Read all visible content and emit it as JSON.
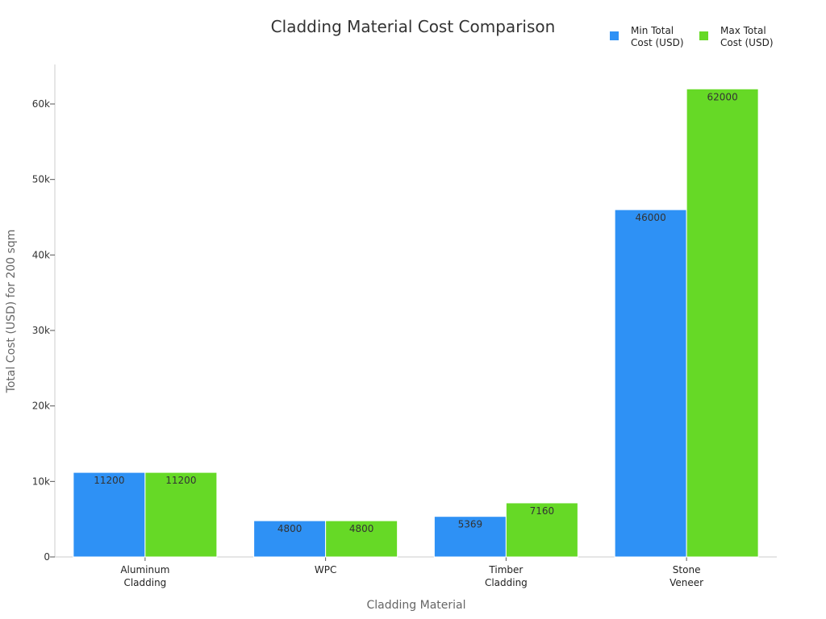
{
  "chart_data": {
    "type": "bar",
    "title": "Cladding Material Cost Comparison",
    "xlabel": "Cladding Material",
    "ylabel": "Total Cost (USD) for 200 sqm",
    "categories": [
      [
        "Aluminum",
        "Cladding"
      ],
      [
        "WPC"
      ],
      [
        "Timber",
        "Cladding"
      ],
      [
        "Stone",
        "Veneer"
      ]
    ],
    "series": [
      {
        "name": [
          "Min Total",
          "Cost (USD)"
        ],
        "color": "#2e91f5",
        "values": [
          11200,
          4800,
          5369,
          46000
        ]
      },
      {
        "name": [
          "Max Total",
          "Cost (USD)"
        ],
        "color": "#66d926",
        "values": [
          11200,
          4800,
          7160,
          62000
        ]
      }
    ],
    "ylim": [
      0,
      65000
    ],
    "yticks": [
      0,
      10000,
      20000,
      30000,
      40000,
      50000,
      60000
    ],
    "ytick_labels": [
      "0",
      "10k",
      "20k",
      "30k",
      "40k",
      "50k",
      "60k"
    ],
    "grid": false,
    "legend_position": "top-right"
  }
}
